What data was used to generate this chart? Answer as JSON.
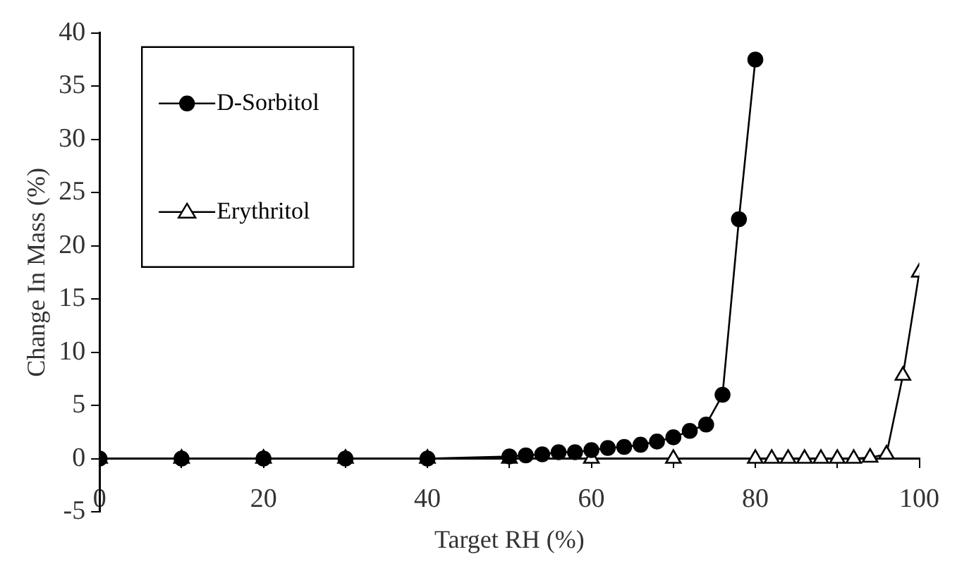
{
  "chart_data": {
    "type": "line",
    "xlabel": "Target RH (%)",
    "ylabel": "Change In Mass (%)",
    "xlim": [
      0,
      100
    ],
    "ylim": [
      -5,
      40
    ],
    "xticks": [
      0,
      {
        "value": 10,
        "label": null
      },
      20,
      {
        "value": 30,
        "label": null
      },
      40,
      {
        "value": 50,
        "label": null
      },
      60,
      {
        "value": 70,
        "label": null
      },
      80,
      {
        "value": 90,
        "label": null
      },
      100
    ],
    "yticks": [
      -5,
      0,
      5,
      10,
      15,
      20,
      25,
      30,
      35,
      40
    ],
    "grid": false,
    "legend": "top left",
    "series": [
      {
        "name": "D-Sorbitol",
        "color": "#000000",
        "marker": "circle",
        "x": [
          0,
          10,
          20,
          30,
          40,
          50,
          52,
          54,
          56,
          58,
          60,
          62,
          64,
          66,
          68,
          70,
          72,
          74,
          76,
          78,
          80
        ],
        "values": [
          0,
          0,
          0,
          0,
          0,
          0.2,
          0.3,
          0.4,
          0.6,
          0.6,
          0.8,
          1.0,
          1.1,
          1.3,
          1.6,
          2.0,
          2.6,
          3.2,
          6.0,
          22.5,
          37.5
        ]
      },
      {
        "name": "Erythritol",
        "color": "#000000",
        "marker": "triangle",
        "x": [
          0,
          10,
          20,
          30,
          40,
          50,
          60,
          70,
          80,
          82,
          84,
          86,
          88,
          90,
          92,
          94,
          96,
          98,
          100
        ],
        "values": [
          0,
          0,
          0,
          0,
          0,
          0,
          0,
          0,
          0,
          0,
          0,
          0,
          0,
          0,
          0,
          0.1,
          0.4,
          7.8,
          17.5
        ]
      }
    ]
  }
}
